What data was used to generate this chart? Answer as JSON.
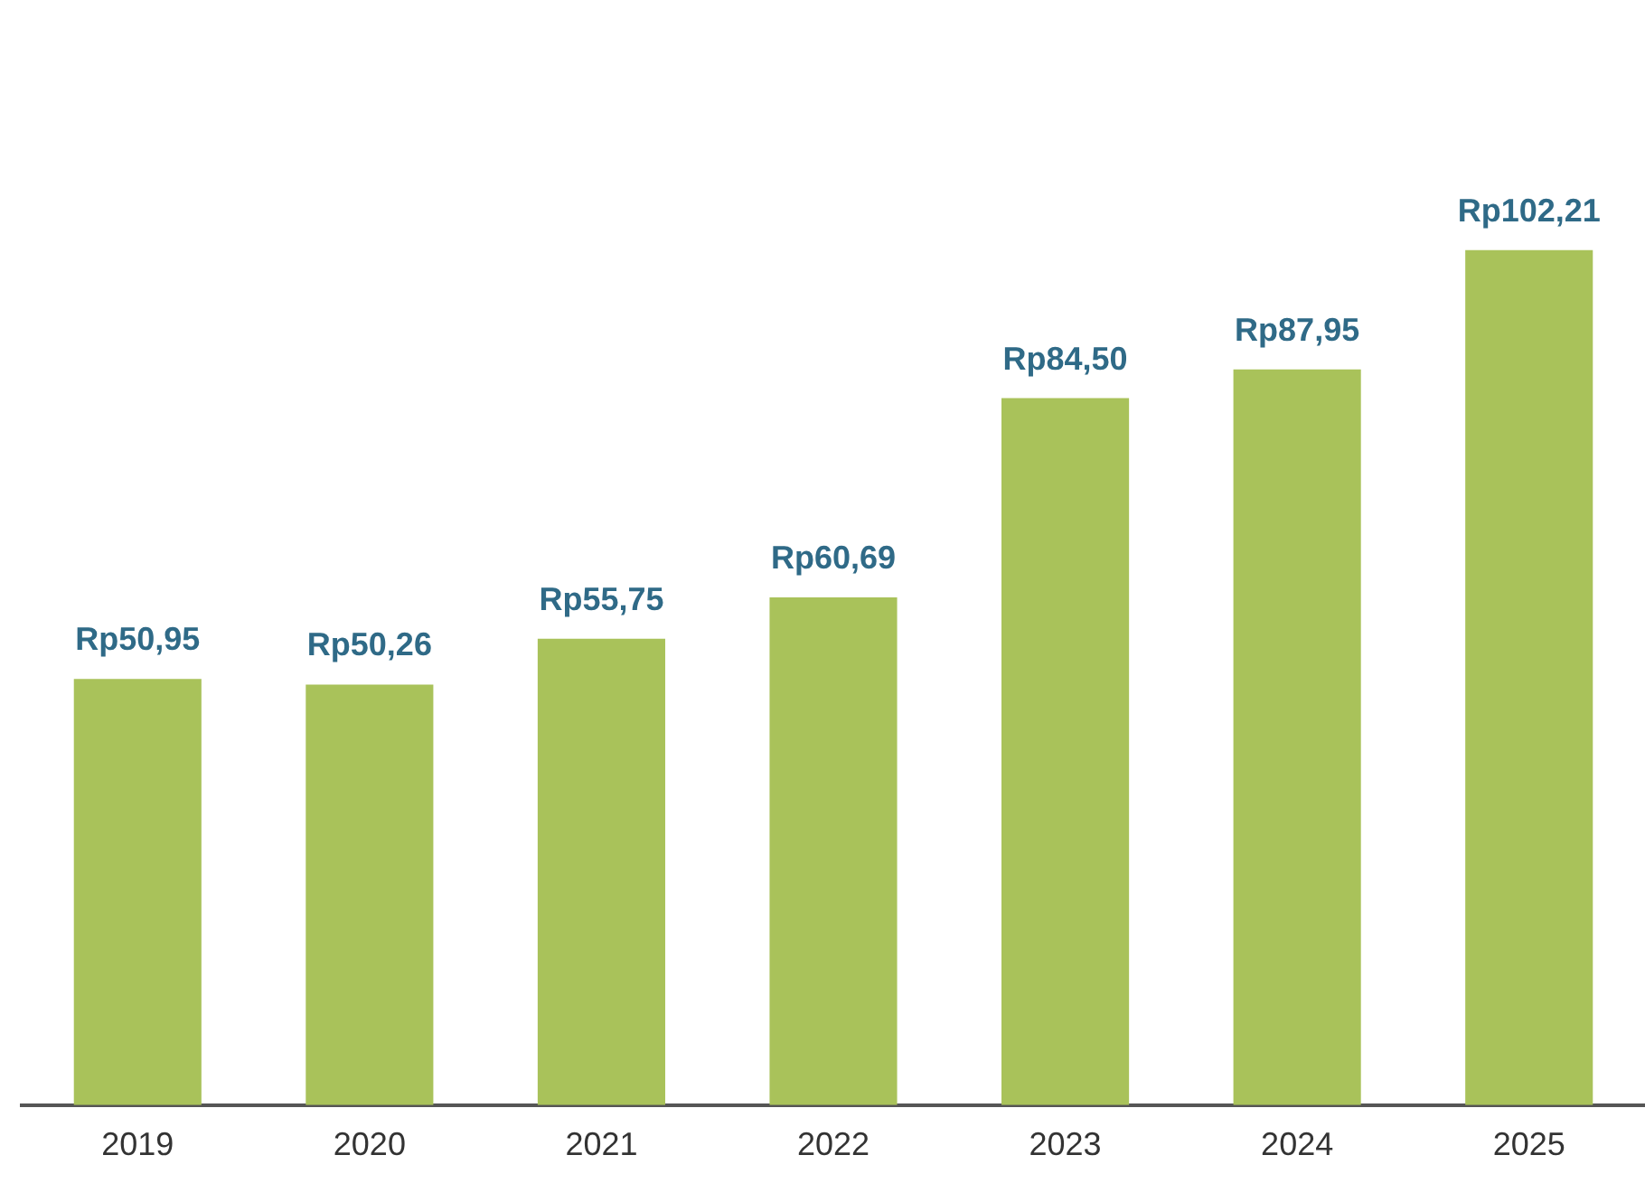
{
  "chart_data": {
    "type": "bar",
    "categories": [
      "2019",
      "2020",
      "2021",
      "2022",
      "2023",
      "2024",
      "2025"
    ],
    "values": [
      50.95,
      50.26,
      55.75,
      60.69,
      84.5,
      87.95,
      102.21
    ],
    "value_labels": [
      "Rp50,95",
      "Rp50,26",
      "Rp55,75",
      "Rp60,69",
      "Rp84,50",
      "Rp87,95",
      "Rp102,21"
    ],
    "color": "#a9c25a",
    "grid": false,
    "legend": false
  }
}
